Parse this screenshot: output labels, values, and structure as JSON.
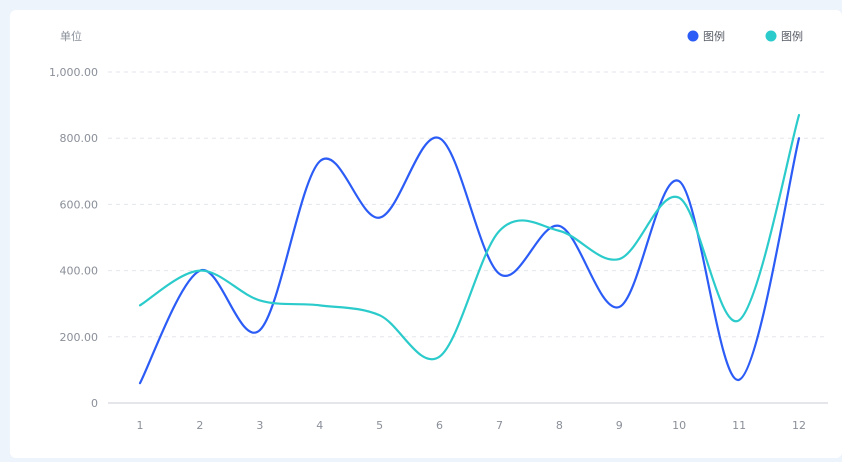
{
  "colors": {
    "background": "#eef4fc",
    "card": "#ffffff",
    "grid": "#e3e6eb",
    "axis": "#c9cdd4",
    "series_1": "#2c5cf6",
    "series_2": "#2ccbcb"
  },
  "chart_data": {
    "type": "line",
    "smooth": true,
    "title": "",
    "xlabel": "",
    "ylabel": "单位",
    "x": [
      "1",
      "2",
      "3",
      "4",
      "5",
      "6",
      "7",
      "8",
      "9",
      "10",
      "11",
      "12"
    ],
    "y_ticks": [
      "0",
      "200.00",
      "400.00",
      "600.00",
      "800.00",
      "1,000.00"
    ],
    "ylim": [
      0,
      1000
    ],
    "grid": "horizontal dashed",
    "legend_position": "top-right",
    "series": [
      {
        "name": "图例",
        "color": "#2c5cf6",
        "values": [
          60,
          400,
          220,
          730,
          560,
          800,
          390,
          535,
          290,
          670,
          70,
          800
        ]
      },
      {
        "name": "图例",
        "color": "#2ccbcb",
        "values": [
          295,
          400,
          310,
          295,
          265,
          140,
          520,
          520,
          435,
          620,
          250,
          870
        ]
      }
    ]
  }
}
